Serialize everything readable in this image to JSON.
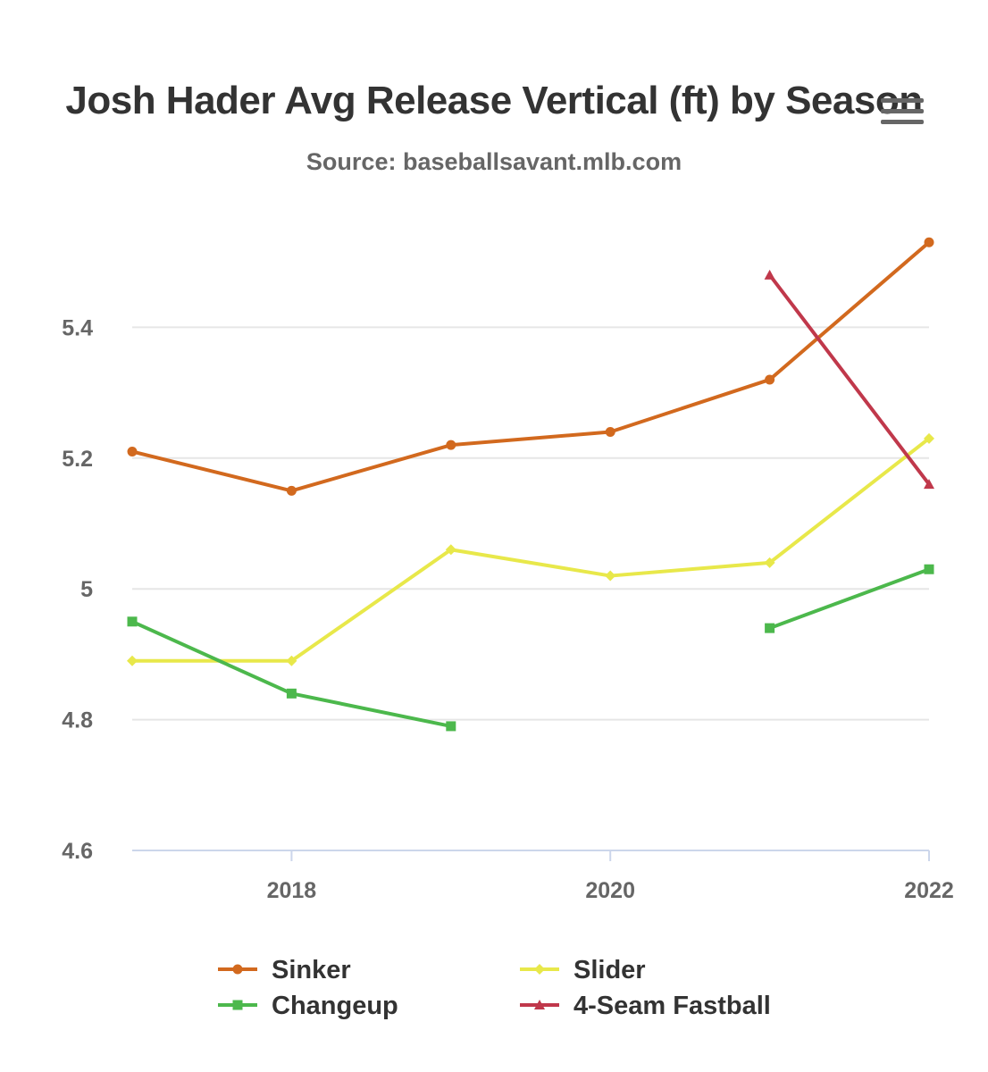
{
  "chart_data": {
    "type": "line",
    "title": "Josh Hader Avg Release Vertical (ft) by Season",
    "subtitle": "Source: baseballsavant.mlb.com",
    "xlabel": "",
    "ylabel": "",
    "x": [
      2017,
      2018,
      2019,
      2020,
      2021,
      2022
    ],
    "xticks": [
      "2018",
      "2020",
      "2022"
    ],
    "xlim": [
      2017,
      2022
    ],
    "yticks": [
      "4.6",
      "4.8",
      "5",
      "5.2",
      "5.4"
    ],
    "ylim": [
      4.6,
      5.6
    ],
    "grid": true,
    "legend_position": "bottom",
    "series": [
      {
        "name": "Sinker",
        "color": "#d2691e",
        "marker": "circle",
        "values": [
          5.21,
          5.15,
          5.22,
          5.24,
          5.32,
          5.53
        ]
      },
      {
        "name": "Slider",
        "color": "#e8e84a",
        "marker": "diamond",
        "values": [
          4.89,
          4.89,
          5.06,
          5.02,
          5.04,
          5.23
        ]
      },
      {
        "name": "Changeup",
        "color": "#4cb84c",
        "marker": "square",
        "values": [
          4.95,
          4.84,
          4.79,
          null,
          4.94,
          5.03
        ]
      },
      {
        "name": "4-Seam Fastball",
        "color": "#c0384b",
        "marker": "triangle",
        "values": [
          null,
          null,
          null,
          null,
          5.48,
          5.16
        ]
      }
    ]
  },
  "ui": {
    "menu_icon": "hamburger-menu-icon"
  }
}
